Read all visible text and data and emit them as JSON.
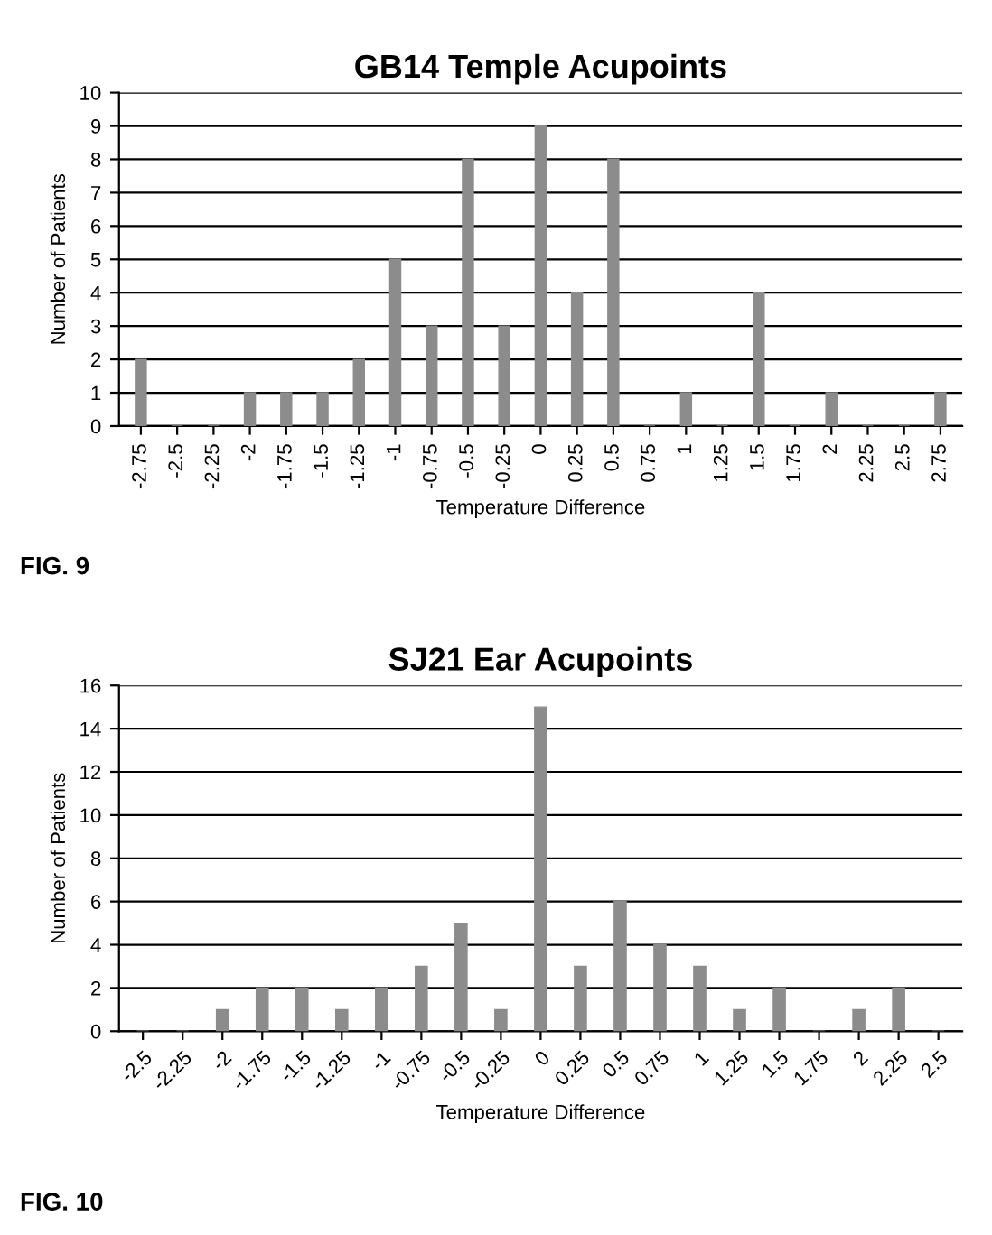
{
  "chart_data": [
    {
      "type": "bar",
      "title": "GB14 Temple Acupoints",
      "xlabel": "Temperature Difference",
      "ylabel": "Number of Patients",
      "annotations": [
        "FIG. 9"
      ],
      "categories": [
        "-2.75",
        "-2.5",
        "-2.25",
        "-2",
        "-1.75",
        "-1.5",
        "-1.25",
        "-1",
        "-0.75",
        "-0.5",
        "-0.25",
        "0",
        "0.25",
        "0.5",
        "0.75",
        "1",
        "1.25",
        "1.5",
        "1.75",
        "2",
        "2.25",
        "2.5",
        "2.75"
      ],
      "values": [
        2,
        0,
        0,
        1,
        1,
        1,
        2,
        5,
        3,
        8,
        3,
        9,
        4,
        8,
        0,
        1,
        0,
        4,
        0,
        1,
        0,
        0,
        1
      ],
      "color": "#8c8c8c",
      "ylim": [
        0,
        10
      ],
      "yticks": [
        0,
        1,
        2,
        3,
        4,
        5,
        6,
        7,
        8,
        9,
        10
      ],
      "grid": "y",
      "legend": false
    },
    {
      "type": "bar",
      "title": "SJ21 Ear Acupoints",
      "xlabel": "Temperature Difference",
      "ylabel": "Number of Patients",
      "annotations": [
        "FIG. 10"
      ],
      "categories": [
        "-2.5",
        "-2.25",
        "-2",
        "-1.75",
        "-1.5",
        "-1.25",
        "-1",
        "-0.75",
        "-0.5",
        "-0.25",
        "0",
        "0.25",
        "0.5",
        "0.75",
        "1",
        "1.25",
        "1.5",
        "1.75",
        "2",
        "2.25",
        "2.5"
      ],
      "values": [
        0,
        0,
        1,
        2,
        2,
        1,
        2,
        3,
        5,
        1,
        15,
        3,
        6,
        4,
        3,
        1,
        2,
        0,
        1,
        2,
        0
      ],
      "color": "#8c8c8c",
      "ylim": [
        0,
        16
      ],
      "yticks": [
        0,
        2,
        4,
        6,
        8,
        10,
        12,
        14,
        16
      ],
      "grid": "y",
      "legend": false
    }
  ]
}
